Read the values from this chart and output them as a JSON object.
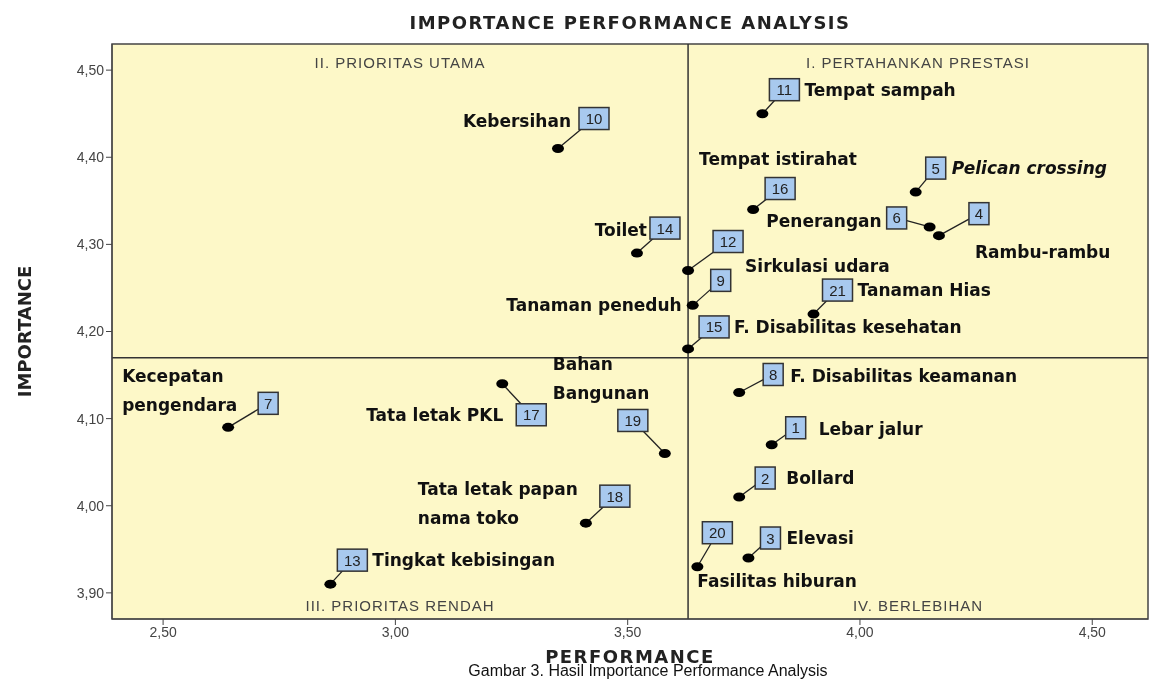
{
  "chart_data": {
    "type": "scatter",
    "title": "IMPORTANCE PERFORMANCE ANALYSIS",
    "xlabel": "PERFORMANCE",
    "ylabel": "IMPORTANCE",
    "x": [
      3.79,
      3.35,
      4.12,
      3.77,
      4.15,
      4.17,
      3.52,
      3.63,
      3.64,
      3.9,
      3.63,
      3.23,
      3.74,
      2.64,
      3.81,
      3.58,
      3.74,
      3.41,
      3.76,
      3.65,
      2.86
    ],
    "values": [
      4.45,
      4.41,
      4.36,
      4.34,
      4.32,
      4.31,
      4.29,
      4.27,
      4.23,
      4.22,
      4.18,
      4.14,
      4.13,
      4.09,
      4.07,
      4.06,
      4.01,
      3.98,
      3.94,
      3.93,
      3.91
    ],
    "color": "#000000",
    "marker": "circle",
    "grid": false,
    "xlim": [
      2.39,
      4.62
    ],
    "ylim": [
      3.87,
      4.53
    ],
    "xticks": [
      {
        "value": 2.5,
        "label": "2,50"
      },
      {
        "value": 3.0,
        "label": "3,00"
      },
      {
        "value": 3.5,
        "label": "3,50"
      },
      {
        "value": 4.0,
        "label": "4,00"
      },
      {
        "value": 4.5,
        "label": "4,50"
      }
    ],
    "yticks": [
      {
        "value": 3.9,
        "label": "3,90"
      },
      {
        "value": 4.0,
        "label": "4,00"
      },
      {
        "value": 4.1,
        "label": "4,10"
      },
      {
        "value": 4.2,
        "label": "4,20"
      },
      {
        "value": 4.3,
        "label": "4,30"
      },
      {
        "value": 4.4,
        "label": "4,40"
      },
      {
        "value": 4.5,
        "label": "4,50"
      }
    ],
    "ref_lines": [
      {
        "axis": "x",
        "value": 3.63,
        "color": "#333333"
      },
      {
        "axis": "y",
        "value": 4.17,
        "color": "#333333"
      }
    ],
    "annotations": [
      "II. PRIORITAS UTAMA",
      "I. PERTAHANKAN PRESTASI",
      "III. PRIORITAS RENDAH",
      "IV. BERLEBIHAN",
      "Gambar 3. Hasil Importance Performance Analysis",
      {
        "text": "11",
        "x": 3.79,
        "y": 4.45
      },
      {
        "text": "Tempat sampah",
        "x": 3.79,
        "y": 4.45
      },
      {
        "text": "10",
        "x": 3.35,
        "y": 4.41
      },
      {
        "text": "Kebersihan",
        "x": 3.35,
        "y": 4.41
      },
      {
        "text": "5",
        "x": 4.12,
        "y": 4.36
      },
      {
        "text": "Pelican crossing",
        "x": 4.12,
        "y": 4.36
      },
      {
        "text": "16",
        "x": 3.77,
        "y": 4.34
      },
      {
        "text": "Tempat istirahat",
        "x": 3.77,
        "y": 4.34
      },
      {
        "text": "6",
        "x": 4.15,
        "y": 4.32
      },
      {
        "text": "Penerangan",
        "x": 4.15,
        "y": 4.32
      },
      {
        "text": "4",
        "x": 4.17,
        "y": 4.31
      },
      {
        "text": "Rambu-rambu",
        "x": 4.17,
        "y": 4.31
      },
      {
        "text": "14",
        "x": 3.52,
        "y": 4.29
      },
      {
        "text": "Toilet",
        "x": 3.52,
        "y": 4.29
      },
      {
        "text": "12",
        "x": 3.63,
        "y": 4.27
      },
      {
        "text": "Sirkulasi udara",
        "x": 3.63,
        "y": 4.27
      },
      {
        "text": "9",
        "x": 3.64,
        "y": 4.23
      },
      {
        "text": "Tanaman peneduh",
        "x": 3.64,
        "y": 4.23
      },
      {
        "text": "21",
        "x": 3.9,
        "y": 4.22
      },
      {
        "text": "Tanaman Hias",
        "x": 3.9,
        "y": 4.22
      },
      {
        "text": "15",
        "x": 3.63,
        "y": 4.18
      },
      {
        "text": "F. Disabilitas kesehatan",
        "x": 3.63,
        "y": 4.18
      },
      {
        "text": "17",
        "x": 3.23,
        "y": 4.14
      },
      {
        "text": "Tata letak PKL",
        "x": 3.23,
        "y": 4.14
      },
      {
        "text": "8",
        "x": 3.74,
        "y": 4.13
      },
      {
        "text": "F. Disabilitas keamanan",
        "x": 3.74,
        "y": 4.13
      },
      {
        "text": "7",
        "x": 2.64,
        "y": 4.09
      },
      {
        "text": "Kecepatan pengendara",
        "x": 2.64,
        "y": 4.09
      },
      {
        "text": "1",
        "x": 3.81,
        "y": 4.07
      },
      {
        "text": "Lebar jalur",
        "x": 3.81,
        "y": 4.07
      },
      {
        "text": "19",
        "x": 3.58,
        "y": 4.06
      },
      {
        "text": "Bahan Bangunan",
        "x": 3.58,
        "y": 4.06
      },
      {
        "text": "2",
        "x": 3.74,
        "y": 4.01
      },
      {
        "text": "Bollard",
        "x": 3.74,
        "y": 4.01
      },
      {
        "text": "18",
        "x": 3.41,
        "y": 3.98
      },
      {
        "text": "Tata letak papan nama toko",
        "x": 3.41,
        "y": 3.98
      },
      {
        "text": "3",
        "x": 3.76,
        "y": 3.94
      },
      {
        "text": "Elevasi",
        "x": 3.76,
        "y": 3.94
      },
      {
        "text": "20",
        "x": 3.65,
        "y": 3.93
      },
      {
        "text": "Fasilitas hiburan",
        "x": 3.65,
        "y": 3.93
      },
      {
        "text": "13",
        "x": 2.86,
        "y": 3.91
      },
      {
        "text": "Tingkat kebisingan",
        "x": 2.86,
        "y": 3.91
      }
    ]
  }
}
